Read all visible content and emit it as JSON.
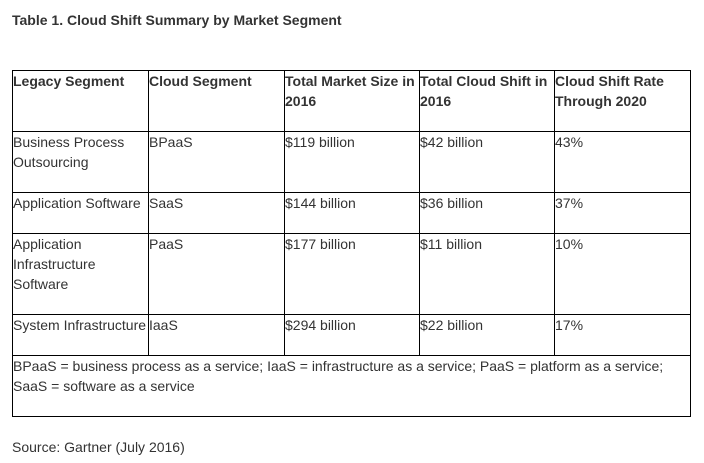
{
  "caption": "Table 1. Cloud Shift Summary by Market Segment",
  "table": {
    "headers": [
      "Legacy Segment",
      "Cloud Segment",
      "Total Market Size in 2016",
      "Total Cloud Shift in 2016",
      "Cloud Shift Rate Through 2020"
    ],
    "rows": [
      [
        "Business Process Outsourcing",
        "BPaaS",
        "$119 billion",
        "$42 billion",
        "43%"
      ],
      [
        "Application Software",
        "SaaS",
        "$144 billion",
        "$36 billion",
        "37%"
      ],
      [
        "Application Infrastructure Software",
        "PaaS",
        "$177 billion",
        "$11 billion",
        "10%"
      ],
      [
        "System Infrastructure",
        "IaaS",
        "$294 billion",
        "$22 billion",
        "17%"
      ]
    ],
    "footnote": "BPaaS = business process as a service; IaaS = infrastructure as a service; PaaS = platform as a service; SaaS = software as a service"
  },
  "source": "Source: Gartner (July 2016)"
}
